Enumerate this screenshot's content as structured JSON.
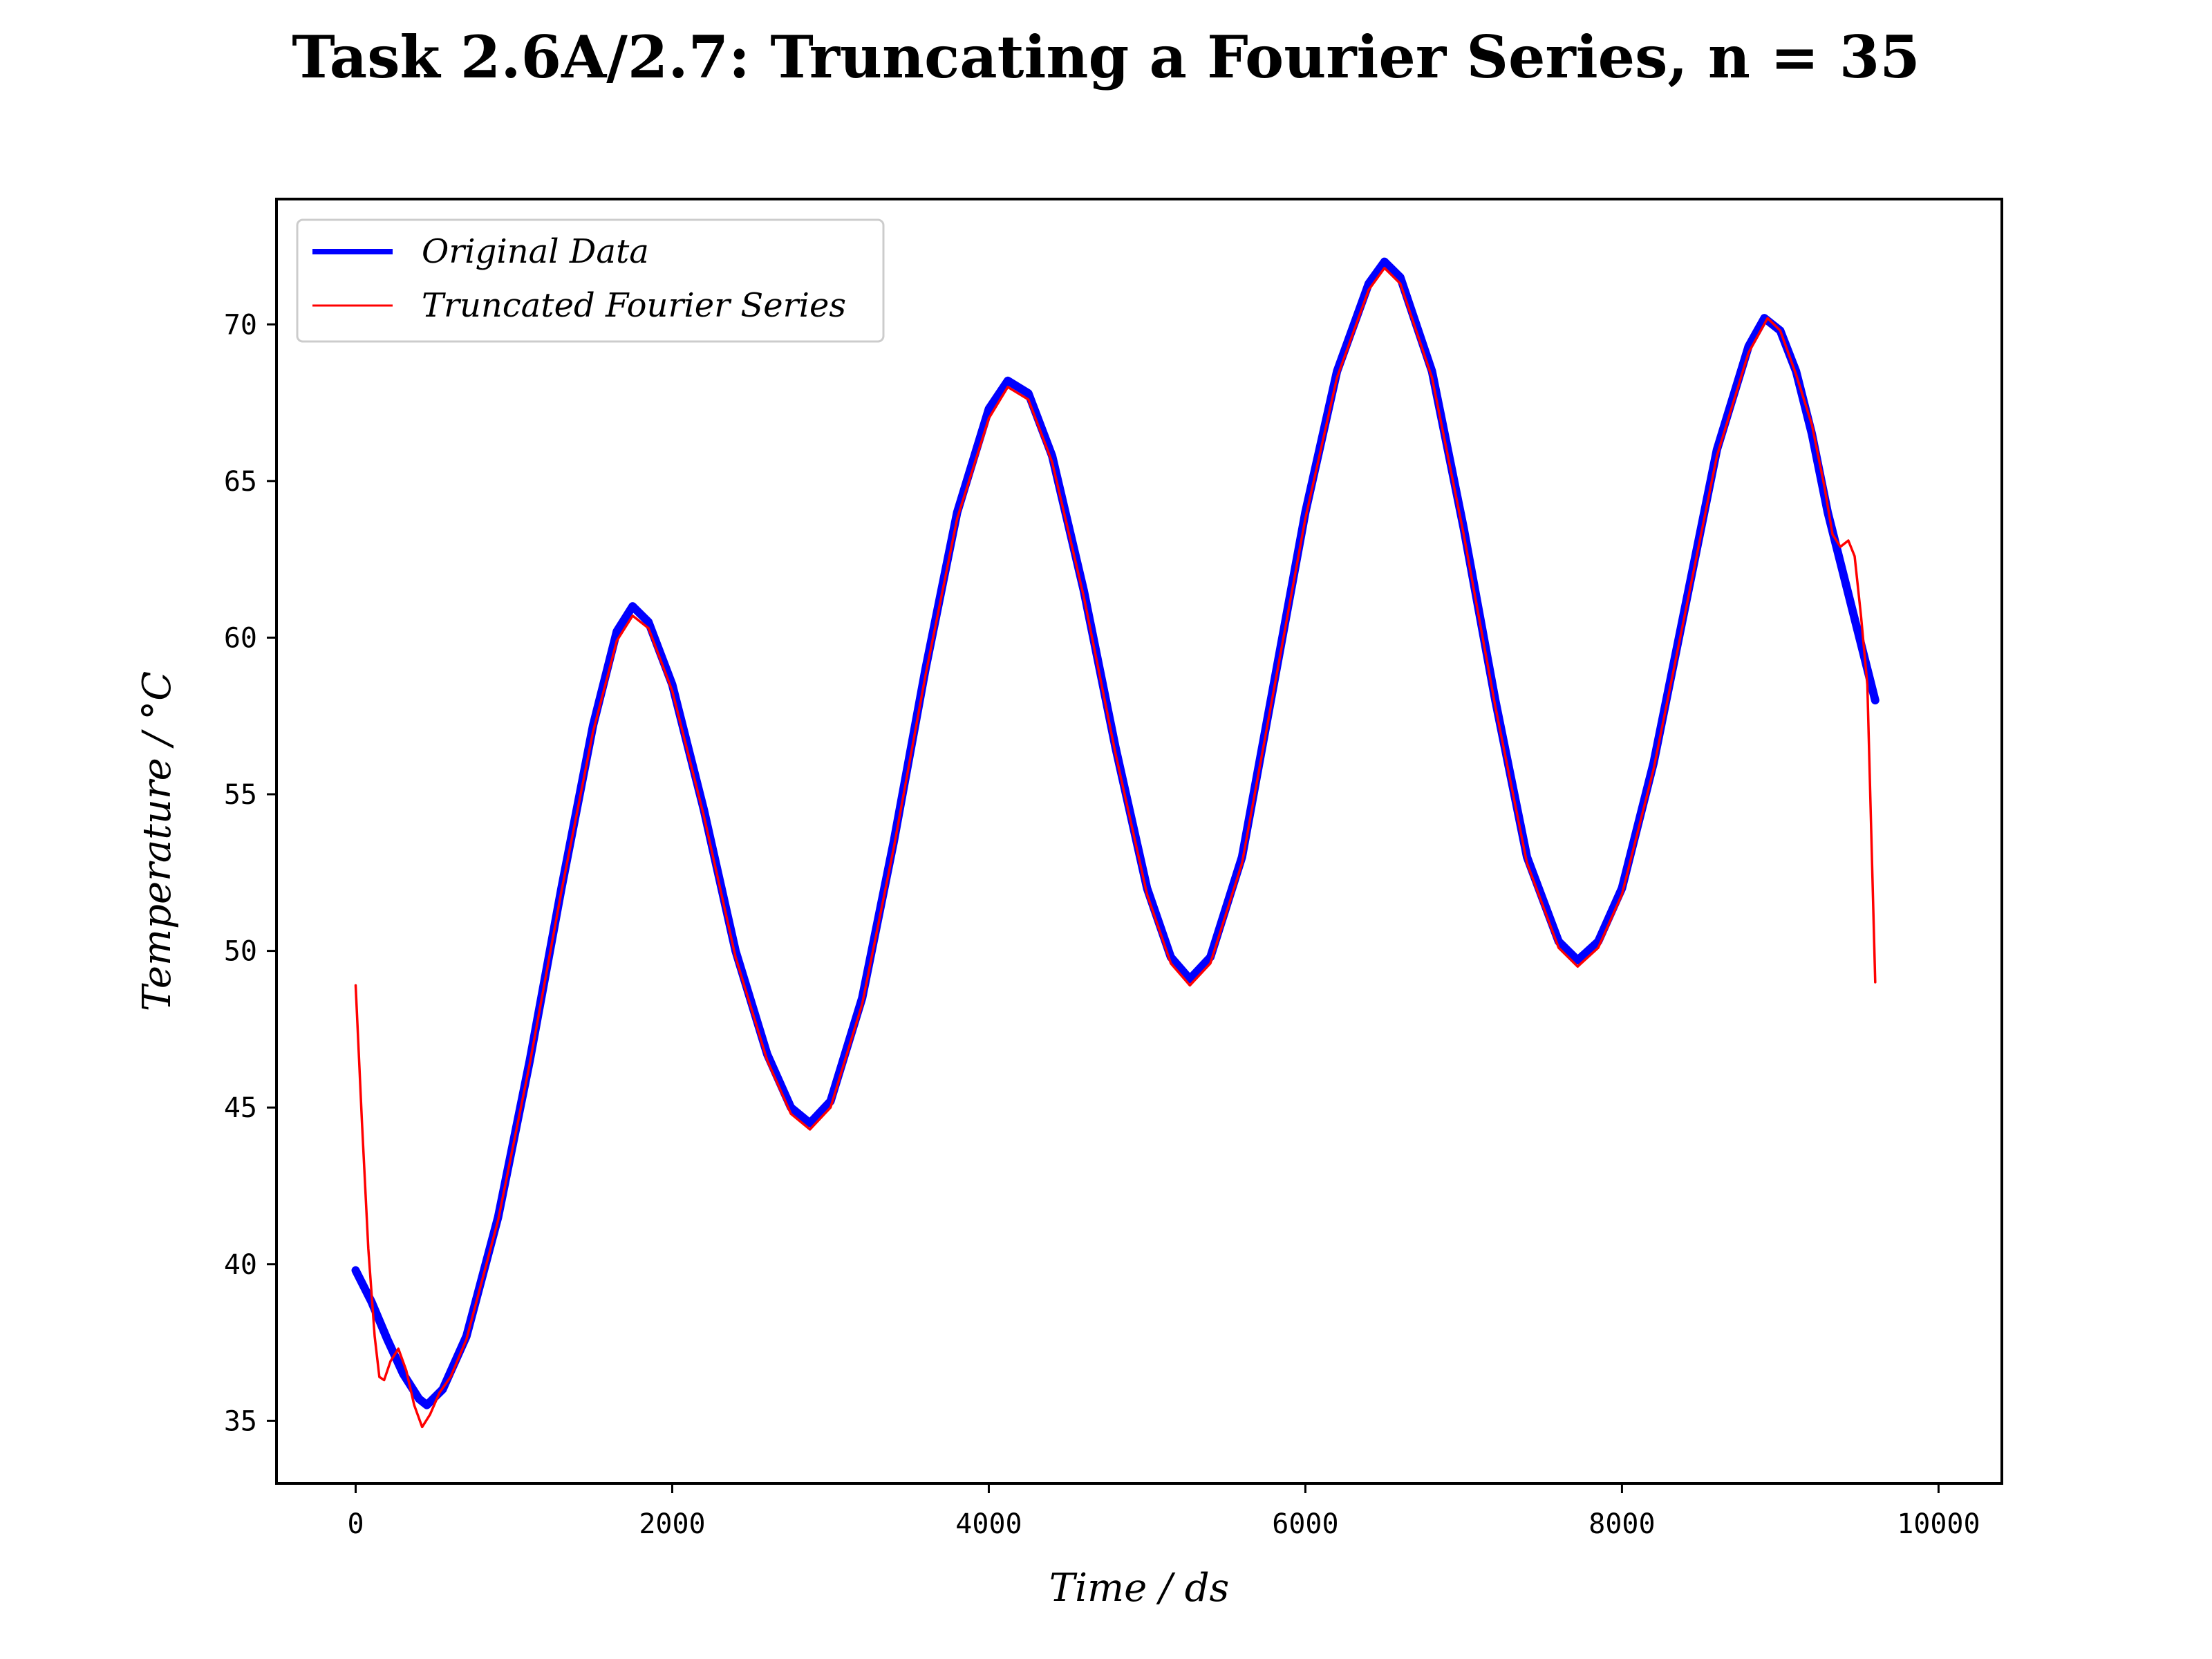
{
  "chart_data": {
    "type": "line",
    "title": "Task 2.6A/2.7: Truncating a Fourier Series, n = 35",
    "xlabel": "Time / ds",
    "ylabel": "Temperature / °C",
    "xlim": [
      -500,
      10400
    ],
    "ylim": [
      33,
      74
    ],
    "xticks": [
      0,
      2000,
      4000,
      6000,
      8000,
      10000
    ],
    "yticks": [
      35,
      40,
      45,
      50,
      55,
      60,
      65,
      70
    ],
    "grid": false,
    "legend_position": "top-left",
    "series": [
      {
        "name": "Original Data",
        "color": "#0000ff",
        "points": [
          [
            0,
            39.8
          ],
          [
            100,
            38.8
          ],
          [
            200,
            37.6
          ],
          [
            300,
            36.5
          ],
          [
            400,
            35.7
          ],
          [
            450,
            35.5
          ],
          [
            550,
            36.0
          ],
          [
            700,
            37.7
          ],
          [
            900,
            41.5
          ],
          [
            1100,
            46.5
          ],
          [
            1300,
            52.0
          ],
          [
            1500,
            57.2
          ],
          [
            1650,
            60.2
          ],
          [
            1750,
            61.0
          ],
          [
            1850,
            60.5
          ],
          [
            2000,
            58.5
          ],
          [
            2200,
            54.5
          ],
          [
            2400,
            50.0
          ],
          [
            2600,
            46.7
          ],
          [
            2750,
            45.0
          ],
          [
            2870,
            44.5
          ],
          [
            3000,
            45.2
          ],
          [
            3200,
            48.5
          ],
          [
            3400,
            53.5
          ],
          [
            3600,
            59.0
          ],
          [
            3800,
            64.0
          ],
          [
            4000,
            67.3
          ],
          [
            4120,
            68.2
          ],
          [
            4250,
            67.8
          ],
          [
            4400,
            65.8
          ],
          [
            4600,
            61.5
          ],
          [
            4800,
            56.5
          ],
          [
            5000,
            52.0
          ],
          [
            5150,
            49.8
          ],
          [
            5270,
            49.1
          ],
          [
            5400,
            49.8
          ],
          [
            5600,
            53.0
          ],
          [
            5800,
            58.5
          ],
          [
            6000,
            64.0
          ],
          [
            6200,
            68.5
          ],
          [
            6400,
            71.3
          ],
          [
            6500,
            72.0
          ],
          [
            6600,
            71.5
          ],
          [
            6800,
            68.5
          ],
          [
            7000,
            63.5
          ],
          [
            7200,
            58.0
          ],
          [
            7400,
            53.0
          ],
          [
            7600,
            50.3
          ],
          [
            7720,
            49.7
          ],
          [
            7850,
            50.3
          ],
          [
            8000,
            52.0
          ],
          [
            8200,
            56.0
          ],
          [
            8400,
            61.0
          ],
          [
            8600,
            66.0
          ],
          [
            8800,
            69.3
          ],
          [
            8900,
            70.2
          ],
          [
            9000,
            69.8
          ],
          [
            9100,
            68.5
          ],
          [
            9200,
            66.5
          ],
          [
            9300,
            64.0
          ],
          [
            9400,
            62.0
          ],
          [
            9500,
            60.0
          ],
          [
            9600,
            58.0
          ]
        ]
      },
      {
        "name": "Truncated Fourier Series",
        "color": "#ff0000",
        "points": [
          [
            0,
            48.9
          ],
          [
            40,
            44.5
          ],
          [
            80,
            40.5
          ],
          [
            120,
            37.7
          ],
          [
            150,
            36.4
          ],
          [
            180,
            36.3
          ],
          [
            220,
            36.9
          ],
          [
            270,
            37.3
          ],
          [
            320,
            36.6
          ],
          [
            370,
            35.5
          ],
          [
            420,
            34.8
          ],
          [
            470,
            35.2
          ],
          [
            530,
            35.9
          ],
          [
            600,
            36.4
          ],
          [
            700,
            37.6
          ],
          [
            900,
            41.4
          ],
          [
            1100,
            46.4
          ],
          [
            1300,
            51.9
          ],
          [
            1500,
            57.0
          ],
          [
            1650,
            59.9
          ],
          [
            1750,
            60.7
          ],
          [
            1850,
            60.3
          ],
          [
            2000,
            58.3
          ],
          [
            2200,
            54.3
          ],
          [
            2400,
            49.8
          ],
          [
            2600,
            46.5
          ],
          [
            2750,
            44.8
          ],
          [
            2870,
            44.3
          ],
          [
            3000,
            45.0
          ],
          [
            3200,
            48.3
          ],
          [
            3400,
            53.3
          ],
          [
            3600,
            58.8
          ],
          [
            3800,
            63.8
          ],
          [
            4000,
            67.0
          ],
          [
            4120,
            68.0
          ],
          [
            4250,
            67.6
          ],
          [
            4400,
            65.6
          ],
          [
            4600,
            61.3
          ],
          [
            4800,
            56.3
          ],
          [
            5000,
            51.8
          ],
          [
            5150,
            49.6
          ],
          [
            5270,
            48.9
          ],
          [
            5400,
            49.6
          ],
          [
            5600,
            52.8
          ],
          [
            5800,
            58.3
          ],
          [
            6000,
            63.8
          ],
          [
            6200,
            68.3
          ],
          [
            6400,
            71.1
          ],
          [
            6500,
            71.8
          ],
          [
            6600,
            71.3
          ],
          [
            6800,
            68.3
          ],
          [
            7000,
            63.3
          ],
          [
            7200,
            57.8
          ],
          [
            7400,
            52.8
          ],
          [
            7600,
            50.1
          ],
          [
            7720,
            49.5
          ],
          [
            7850,
            50.1
          ],
          [
            8000,
            51.8
          ],
          [
            8200,
            55.8
          ],
          [
            8400,
            60.8
          ],
          [
            8600,
            65.8
          ],
          [
            8800,
            69.1
          ],
          [
            8920,
            70.2
          ],
          [
            9000,
            69.8
          ],
          [
            9100,
            68.4
          ],
          [
            9200,
            66.8
          ],
          [
            9280,
            64.8
          ],
          [
            9330,
            63.3
          ],
          [
            9380,
            62.9
          ],
          [
            9430,
            63.1
          ],
          [
            9470,
            62.6
          ],
          [
            9510,
            60.7
          ],
          [
            9550,
            58.5
          ],
          [
            9600,
            49.0
          ]
        ]
      }
    ]
  }
}
